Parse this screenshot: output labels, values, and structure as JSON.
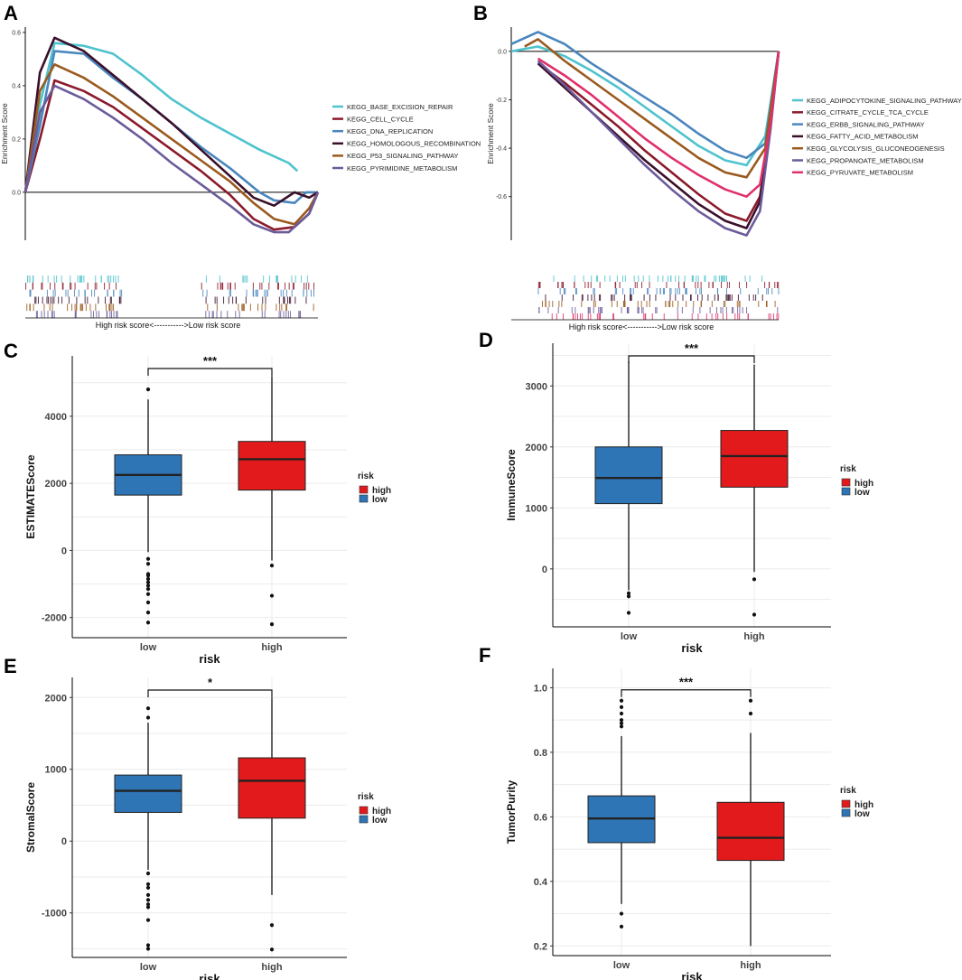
{
  "panels": {
    "A": "A",
    "B": "B",
    "C": "C",
    "D": "D",
    "E": "E",
    "F": "F"
  },
  "colors": {
    "high": "#e31a1c",
    "low": "#2e75b6",
    "grid": "#ebebeb"
  },
  "chart_data": [
    {
      "id": "A",
      "type": "line",
      "title": "",
      "ylabel": "Enrichment Score",
      "ylim": [
        -0.18,
        0.62
      ],
      "yticks": [
        0.0,
        0.2,
        0.4,
        0.6
      ],
      "yticklabels": [
        "0.0",
        "0.2",
        "0.4",
        "0.6"
      ],
      "xlabel": "High risk score<----------->Low risk score",
      "series": [
        {
          "name": "KEGG_BASE_EXCISION_REPAIR",
          "color": "#4ec3ce",
          "x": [
            0,
            0.05,
            0.1,
            0.2,
            0.3,
            0.4,
            0.5,
            0.6,
            0.7,
            0.8,
            0.9,
            0.93
          ],
          "y": [
            0.0,
            0.33,
            0.56,
            0.55,
            0.52,
            0.44,
            0.35,
            0.28,
            0.22,
            0.16,
            0.11,
            0.08
          ]
        },
        {
          "name": "KEGG_CELL_CYCLE",
          "color": "#8b1a2b",
          "x": [
            0,
            0.05,
            0.1,
            0.2,
            0.3,
            0.4,
            0.5,
            0.6,
            0.7,
            0.78,
            0.85,
            0.92,
            0.97,
            1.0
          ],
          "y": [
            0.0,
            0.2,
            0.42,
            0.38,
            0.32,
            0.24,
            0.16,
            0.08,
            -0.01,
            -0.1,
            -0.14,
            -0.13,
            -0.08,
            0.0
          ]
        },
        {
          "name": "KEGG_DNA_REPLICATION",
          "color": "#4a86bd",
          "x": [
            0,
            0.05,
            0.1,
            0.2,
            0.3,
            0.4,
            0.5,
            0.6,
            0.7,
            0.8,
            0.85,
            0.92,
            0.96,
            1.0
          ],
          "y": [
            0.0,
            0.25,
            0.53,
            0.52,
            0.43,
            0.35,
            0.26,
            0.17,
            0.09,
            0.0,
            -0.03,
            -0.04,
            0.0,
            0.0
          ]
        },
        {
          "name": "KEGG_HOMOLOGOUS_RECOMBINATION",
          "color": "#3a0f2a",
          "x": [
            0,
            0.05,
            0.1,
            0.2,
            0.3,
            0.4,
            0.5,
            0.6,
            0.7,
            0.78,
            0.85,
            0.92,
            0.97,
            1.0
          ],
          "y": [
            0.0,
            0.45,
            0.58,
            0.53,
            0.44,
            0.35,
            0.26,
            0.16,
            0.06,
            -0.02,
            -0.05,
            0.0,
            -0.02,
            0.0
          ]
        },
        {
          "name": "KEGG_P53_SIGNALING_PATHWAY",
          "color": "#9a5a1e",
          "x": [
            0,
            0.05,
            0.1,
            0.2,
            0.3,
            0.4,
            0.5,
            0.6,
            0.7,
            0.78,
            0.85,
            0.92,
            0.97,
            1.0
          ],
          "y": [
            0.0,
            0.38,
            0.48,
            0.43,
            0.36,
            0.28,
            0.2,
            0.12,
            0.04,
            -0.04,
            -0.1,
            -0.12,
            -0.06,
            0.0
          ]
        },
        {
          "name": "KEGG_PYRIMIDINE_METABOLISM",
          "color": "#6b5b9a",
          "x": [
            0,
            0.05,
            0.1,
            0.2,
            0.3,
            0.4,
            0.5,
            0.6,
            0.7,
            0.78,
            0.85,
            0.9,
            0.97,
            1.0
          ],
          "y": [
            0.0,
            0.3,
            0.4,
            0.35,
            0.28,
            0.2,
            0.11,
            0.03,
            -0.05,
            -0.12,
            -0.15,
            -0.15,
            -0.08,
            0.0
          ]
        }
      ]
    },
    {
      "id": "B",
      "type": "line",
      "title": "",
      "ylabel": "Enrichment Score",
      "ylim": [
        -0.78,
        0.1
      ],
      "yticks": [
        0.0,
        -0.2,
        -0.4,
        -0.6
      ],
      "yticklabels": [
        "0.0",
        "-0.2",
        "-0.4",
        "-0.6"
      ],
      "xlabel": "High risk score<----------->Low risk score",
      "series": [
        {
          "name": "KEGG_ADIPOCYTOKINE_SIGNALING_PATHWAY",
          "color": "#4ec3ce",
          "x": [
            0,
            0.1,
            0.2,
            0.3,
            0.4,
            0.5,
            0.6,
            0.7,
            0.8,
            0.88,
            0.95,
            1.0
          ],
          "y": [
            0.0,
            0.02,
            -0.02,
            -0.08,
            -0.15,
            -0.23,
            -0.31,
            -0.39,
            -0.45,
            -0.47,
            -0.35,
            0.0
          ]
        },
        {
          "name": "KEGG_CITRATE_CYCLE_TCA_CYCLE",
          "color": "#8b1a2b",
          "x": [
            0.1,
            0.2,
            0.3,
            0.4,
            0.5,
            0.6,
            0.7,
            0.8,
            0.88,
            0.93,
            0.97,
            1.0
          ],
          "y": [
            -0.05,
            -0.13,
            -0.22,
            -0.31,
            -0.41,
            -0.5,
            -0.59,
            -0.67,
            -0.7,
            -0.6,
            -0.3,
            0.0
          ]
        },
        {
          "name": "KEGG_ERBB_SIGNALING_PATHWAY",
          "color": "#4a86bd",
          "x": [
            0,
            0.1,
            0.2,
            0.3,
            0.4,
            0.5,
            0.6,
            0.7,
            0.8,
            0.88,
            0.95,
            1.0
          ],
          "y": [
            0.03,
            0.08,
            0.03,
            -0.05,
            -0.12,
            -0.19,
            -0.26,
            -0.34,
            -0.41,
            -0.44,
            -0.38,
            0.0
          ]
        },
        {
          "name": "KEGG_FATTY_ACID_METABOLISM",
          "color": "#3a0f2a",
          "x": [
            0.1,
            0.2,
            0.3,
            0.4,
            0.5,
            0.6,
            0.7,
            0.8,
            0.88,
            0.93,
            0.97,
            1.0
          ],
          "y": [
            -0.05,
            -0.15,
            -0.25,
            -0.35,
            -0.45,
            -0.54,
            -0.63,
            -0.7,
            -0.73,
            -0.62,
            -0.3,
            0.0
          ]
        },
        {
          "name": "KEGG_GLYCOLYSIS_GLUCONEOGENESIS",
          "color": "#9a5a1e",
          "x": [
            0.05,
            0.1,
            0.2,
            0.3,
            0.4,
            0.5,
            0.6,
            0.7,
            0.8,
            0.88,
            0.95,
            1.0
          ],
          "y": [
            0.02,
            0.05,
            -0.04,
            -0.12,
            -0.2,
            -0.28,
            -0.36,
            -0.44,
            -0.5,
            -0.52,
            -0.4,
            0.0
          ]
        },
        {
          "name": "KEGG_PROPANOATE_METABOLISM",
          "color": "#6b5b9a",
          "x": [
            0.1,
            0.2,
            0.3,
            0.4,
            0.5,
            0.6,
            0.7,
            0.8,
            0.88,
            0.93,
            0.97,
            1.0
          ],
          "y": [
            -0.04,
            -0.14,
            -0.25,
            -0.36,
            -0.47,
            -0.57,
            -0.66,
            -0.73,
            -0.76,
            -0.66,
            -0.32,
            0.0
          ]
        },
        {
          "name": "KEGG_PYRUVATE_METABOLISM",
          "color": "#e0306a",
          "x": [
            0.1,
            0.2,
            0.3,
            0.4,
            0.5,
            0.6,
            0.7,
            0.8,
            0.88,
            0.93,
            0.97,
            1.0
          ],
          "y": [
            -0.03,
            -0.1,
            -0.18,
            -0.27,
            -0.36,
            -0.44,
            -0.51,
            -0.57,
            -0.6,
            -0.55,
            -0.3,
            0.0
          ]
        }
      ]
    },
    {
      "id": "C",
      "type": "box",
      "ylabel": "ESTIMATEScore",
      "xlabel": "risk",
      "categories": [
        "low",
        "high"
      ],
      "ylim": [
        -2600,
        5800
      ],
      "yticks": [
        -2000,
        0,
        2000,
        4000
      ],
      "yticklabels": [
        "-2000",
        "0",
        "2000",
        "4000"
      ],
      "significance": "***",
      "legend_title": "risk",
      "legend": [
        "high",
        "low"
      ],
      "boxes": [
        {
          "group": "low",
          "min": -50,
          "q1": 1650,
          "median": 2250,
          "q3": 2850,
          "max": 4500,
          "outliers": [
            4800,
            -250,
            -400,
            -700,
            -750,
            -850,
            -950,
            -1050,
            -1150,
            -1300,
            -1550,
            -1850,
            -2150
          ]
        },
        {
          "group": "high",
          "min": -300,
          "q1": 1800,
          "median": 2720,
          "q3": 3250,
          "max": 5200,
          "outliers": [
            -450,
            -1350,
            -2200
          ]
        }
      ]
    },
    {
      "id": "D",
      "type": "box",
      "ylabel": "ImmuneScore",
      "xlabel": "risk",
      "categories": [
        "low",
        "high"
      ],
      "ylim": [
        -950,
        3700
      ],
      "yticks": [
        0,
        1000,
        2000,
        3000
      ],
      "yticklabels": [
        "0",
        "1000",
        "2000",
        "3000"
      ],
      "significance": "***",
      "legend_title": "risk",
      "legend": [
        "high",
        "low"
      ],
      "boxes": [
        {
          "group": "low",
          "min": -350,
          "q1": 1070,
          "median": 1490,
          "q3": 2000,
          "max": 3400,
          "outliers": [
            -400,
            -450,
            -720
          ]
        },
        {
          "group": "high",
          "min": -50,
          "q1": 1340,
          "median": 1850,
          "q3": 2270,
          "max": 3350,
          "outliers": [
            -170,
            -750
          ]
        }
      ]
    },
    {
      "id": "E",
      "type": "box",
      "ylabel": "StromalScore",
      "xlabel": "risk",
      "categories": [
        "low",
        "high"
      ],
      "ylim": [
        -1620,
        2280
      ],
      "yticks": [
        -1000,
        0,
        1000,
        2000
      ],
      "yticklabels": [
        "-1000",
        "0",
        "1000",
        "2000"
      ],
      "significance": "*",
      "legend_title": "risk",
      "legend": [
        "high",
        "low"
      ],
      "boxes": [
        {
          "group": "low",
          "min": -400,
          "q1": 400,
          "median": 700,
          "q3": 920,
          "max": 1650,
          "outliers": [
            1850,
            1720,
            -450,
            -600,
            -650,
            -750,
            -820,
            -880,
            -920,
            -1100,
            -1450,
            -1500
          ]
        },
        {
          "group": "high",
          "min": -750,
          "q1": 320,
          "median": 840,
          "q3": 1160,
          "max": 2000,
          "outliers": [
            -1170,
            -1510
          ]
        }
      ]
    },
    {
      "id": "F",
      "type": "box",
      "ylabel": "TumorPurity",
      "xlabel": "risk",
      "categories": [
        "low",
        "high"
      ],
      "ylim": [
        0.17,
        1.06
      ],
      "yticks": [
        0.2,
        0.4,
        0.6,
        0.8,
        1.0
      ],
      "yticklabels": [
        "0.2",
        "0.4",
        "0.6",
        "0.8",
        "1.0"
      ],
      "significance": "***",
      "legend_title": "risk",
      "legend": [
        "high",
        "low"
      ],
      "boxes": [
        {
          "group": "low",
          "min": 0.33,
          "q1": 0.52,
          "median": 0.595,
          "q3": 0.665,
          "max": 0.85,
          "outliers": [
            0.96,
            0.94,
            0.92,
            0.9,
            0.89,
            0.88,
            0.3,
            0.26
          ]
        },
        {
          "group": "high",
          "min": 0.2,
          "q1": 0.465,
          "median": 0.535,
          "q3": 0.645,
          "max": 0.86,
          "outliers": [
            0.96,
            0.92
          ]
        }
      ]
    }
  ]
}
